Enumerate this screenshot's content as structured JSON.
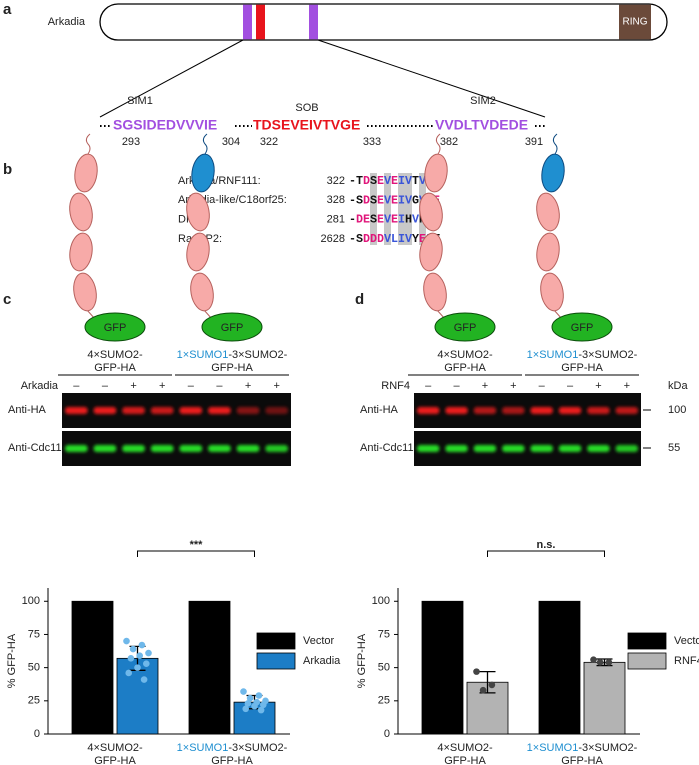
{
  "figure": {
    "a": {
      "label": "a",
      "protein": "Arkadia",
      "domain": "RING",
      "ring_color": "#6b4a3a",
      "motifs": [
        {
          "name": "SIM1",
          "sequence": "SGSIDEDVVVIE",
          "start": 293,
          "end": 304,
          "color": "#a24fe0"
        },
        {
          "name": "SOB",
          "sequence": "TDSEVEIVTVGE",
          "start": 322,
          "end": 333,
          "color": "#e8141c"
        },
        {
          "name": "SIM2",
          "sequence": "VVDLTVDEDE",
          "start": 382,
          "end": 391,
          "color": "#a24fe0"
        }
      ]
    },
    "b": {
      "label": "b",
      "rows": [
        {
          "name": "Arkadia/RNF111:",
          "start": 322,
          "sequence": "-TDSEVEIVTVGE"
        },
        {
          "name": "Arkadia-like/C18orf25:",
          "start": 328,
          "sequence": "-SDSEVEIVGVQE"
        },
        {
          "name": "DPP9:",
          "start": 281,
          "sequence": "-DESEVEIHVPS"
        },
        {
          "name": "RanBP2:",
          "start": 2628,
          "sequence": "-SDDDVLIVYELT"
        }
      ],
      "residue_colors": {
        "D": "#e0157a",
        "E": "#e0157a",
        "V": "#3a55d8",
        "I": "#3a55d8",
        "L": "#3a55d8"
      }
    },
    "c": {
      "label": "c",
      "gfp": "GFP",
      "treatment": "Arkadia",
      "lanes": [
        "–",
        "–",
        "+",
        "+",
        "–",
        "–",
        "+",
        "+"
      ],
      "constructs": [
        [
          [
            "4×SUMO2-"
          ],
          [
            "GFP-HA"
          ]
        ],
        [
          [
            {
              "text": "1×SUMO1",
              "color": "#1f8fd0"
            },
            "-3×SUMO2-"
          ],
          [
            "GFP-HA"
          ]
        ]
      ],
      "blots": [
        "Anti-HA",
        "Anti-Cdc11"
      ]
    },
    "d": {
      "label": "d",
      "gfp": "GFP",
      "treatment": "RNF4",
      "lanes": [
        "–",
        "–",
        "+",
        "+",
        "–",
        "–",
        "+",
        "+"
      ],
      "constructs": [
        [
          [
            "4×SUMO2-"
          ],
          [
            "GFP-HA"
          ]
        ],
        [
          [
            {
              "text": "1×SUMO1",
              "color": "#1f8fd0"
            },
            "-3×SUMO2-"
          ],
          [
            "GFP-HA"
          ]
        ]
      ],
      "blots": [
        "Anti-HA",
        "Anti-Cdc11"
      ],
      "marker_unit": "kDa",
      "markers": [
        100,
        55
      ]
    }
  },
  "chart_data": [
    {
      "type": "bar",
      "ylabel": "% GFP-HA",
      "categories": [
        [
          [
            "4×SUMO2-"
          ],
          [
            "GFP-HA"
          ]
        ],
        [
          [
            {
              "text": "1×SUMO1",
              "color": "#1f8fd0"
            },
            "-3×SUMO2-"
          ],
          [
            "GFP-HA"
          ]
        ]
      ],
      "series": [
        {
          "name": "Vector",
          "color": "#000000",
          "values": [
            100,
            100
          ]
        },
        {
          "name": "Arkadia",
          "color": "#1c7dc6",
          "values": [
            57,
            24
          ],
          "errors": [
            9,
            5
          ],
          "point_color": "#6fb8ea",
          "points": [
            [
              70,
              67,
              64,
              61,
              59,
              57,
              53,
              50,
              46,
              41
            ],
            [
              32,
              29,
              27,
              25,
              24,
              23,
              22,
              21,
              19,
              18
            ]
          ]
        }
      ],
      "ylim": [
        0,
        110
      ],
      "yticks": [
        0,
        25,
        50,
        75,
        100
      ],
      "significance": "***"
    },
    {
      "type": "bar",
      "ylabel": "% GFP-HA",
      "categories": [
        [
          [
            "4×SUMO2-"
          ],
          [
            "GFP-HA"
          ]
        ],
        [
          [
            {
              "text": "1×SUMO1",
              "color": "#1f8fd0"
            },
            "-3×SUMO2-"
          ],
          [
            "GFP-HA"
          ]
        ]
      ],
      "series": [
        {
          "name": "Vector",
          "color": "#000000",
          "values": [
            100,
            100
          ]
        },
        {
          "name": "RNF4",
          "color": "#b3b3b3",
          "values": [
            39,
            54
          ],
          "errors": [
            8,
            2.5
          ],
          "point_color": "#444444",
          "points": [
            [
              47,
              37,
              33
            ],
            [
              56,
              54,
              54
            ]
          ]
        }
      ],
      "ylim": [
        0,
        110
      ],
      "yticks": [
        0,
        25,
        50,
        75,
        100
      ],
      "significance": "n.s."
    }
  ]
}
